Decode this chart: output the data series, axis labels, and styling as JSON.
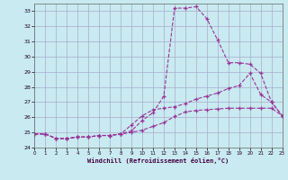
{
  "bg_color": "#c8eaf0",
  "grid_color": "#aaaacc",
  "line_color": "#993399",
  "xlabel": "Windchill (Refroidissement éolien,°C)",
  "xlim": [
    0,
    23
  ],
  "ylim": [
    24,
    33.5
  ],
  "yticks": [
    24,
    25,
    26,
    27,
    28,
    29,
    30,
    31,
    32,
    33
  ],
  "xticks": [
    0,
    1,
    2,
    3,
    4,
    5,
    6,
    7,
    8,
    9,
    10,
    11,
    12,
    13,
    14,
    15,
    16,
    17,
    18,
    19,
    20,
    21,
    22,
    23
  ],
  "line1_x": [
    0,
    1,
    2,
    3,
    4,
    5,
    6,
    7,
    8,
    9,
    10,
    11,
    12,
    13,
    14,
    15,
    16,
    17,
    18,
    19,
    20,
    21,
    22,
    23
  ],
  "line1_y": [
    24.9,
    24.9,
    24.6,
    24.6,
    24.7,
    24.7,
    24.8,
    24.8,
    24.9,
    25.0,
    25.15,
    25.4,
    25.65,
    26.05,
    26.35,
    26.45,
    26.5,
    26.55,
    26.6,
    26.6,
    26.6,
    26.6,
    26.6,
    26.1
  ],
  "line2_x": [
    0,
    1,
    2,
    3,
    4,
    5,
    6,
    7,
    8,
    9,
    10,
    11,
    12,
    13,
    14,
    15,
    16,
    17,
    18,
    19,
    20,
    21,
    22,
    23
  ],
  "line2_y": [
    24.9,
    24.9,
    24.6,
    24.6,
    24.7,
    24.7,
    24.8,
    24.8,
    24.9,
    25.1,
    25.8,
    26.3,
    27.4,
    33.2,
    33.2,
    33.3,
    32.5,
    31.1,
    29.6,
    29.6,
    29.5,
    28.9,
    27.0,
    26.1
  ],
  "line3_x": [
    0,
    1,
    2,
    3,
    4,
    5,
    6,
    7,
    8,
    9,
    10,
    11,
    12,
    13,
    14,
    15,
    16,
    17,
    18,
    19,
    20,
    21,
    22,
    23
  ],
  "line3_y": [
    24.9,
    24.9,
    24.6,
    24.6,
    24.7,
    24.7,
    24.8,
    24.8,
    24.9,
    25.5,
    26.1,
    26.5,
    26.6,
    26.7,
    26.9,
    27.2,
    27.4,
    27.6,
    27.9,
    28.1,
    28.9,
    27.5,
    27.0,
    26.1
  ]
}
